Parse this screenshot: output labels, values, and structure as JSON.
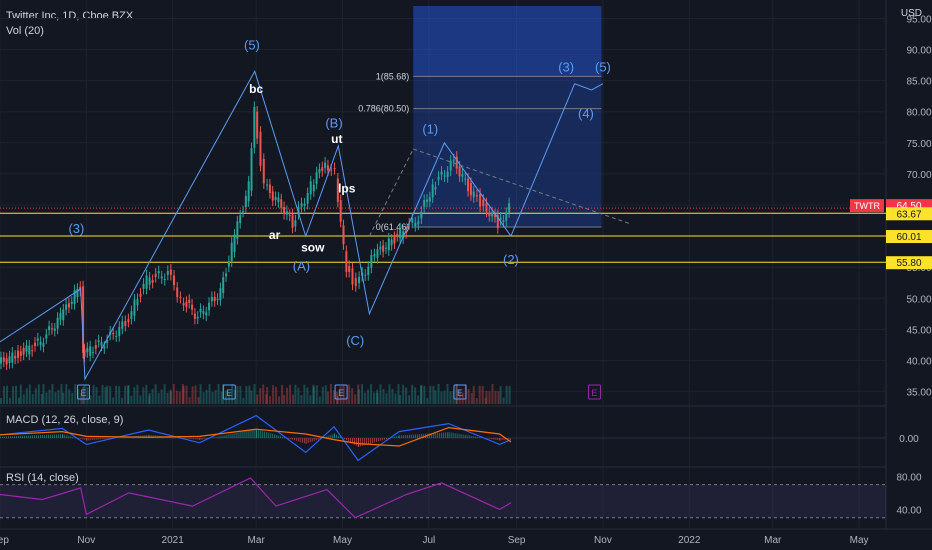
{
  "header": {
    "title": "Twitter Inc, 1D, Cboe BZX",
    "vol": "Vol (20)",
    "currency": "USD"
  },
  "indicators": {
    "macd_label": "MACD (12, 26, close, 9)",
    "rsi_label": "RSI (14, close)"
  },
  "chart_data": {
    "type": "candlestick",
    "title": "Twitter Inc, 1D, Cboe BZX",
    "ticker": "TWTR",
    "last_price": "64.50",
    "price_axis": {
      "ylim": [
        33,
        97
      ],
      "ticks": [
        "35.00",
        "40.00",
        "45.00",
        "50.00",
        "55.00",
        "60.00",
        "65.00",
        "70.00",
        "75.00",
        "80.00",
        "85.00",
        "90.00",
        "95.00"
      ]
    },
    "time_axis": {
      "range_start": "2020-09-01",
      "range_end": "2022-05-20",
      "ticks": [
        {
          "label": "Sep",
          "date": "2020-09-01"
        },
        {
          "label": "Nov",
          "date": "2020-11-01"
        },
        {
          "label": "2021",
          "date": "2021-01-01"
        },
        {
          "label": "Mar",
          "date": "2021-03-01"
        },
        {
          "label": "May",
          "date": "2021-05-01"
        },
        {
          "label": "Jul",
          "date": "2021-07-01"
        },
        {
          "label": "Sep",
          "date": "2021-09-01"
        },
        {
          "label": "Nov",
          "date": "2021-11-01"
        },
        {
          "label": "2022",
          "date": "2022-01-01"
        },
        {
          "label": "Mar",
          "date": "2022-03-01"
        },
        {
          "label": "May",
          "date": "2022-05-01"
        }
      ]
    },
    "price_path": [
      [
        "2020-09-01",
        39.5
      ],
      [
        "2020-09-15",
        41
      ],
      [
        "2020-10-01",
        43
      ],
      [
        "2020-10-15",
        47
      ],
      [
        "2020-10-29",
        52
      ],
      [
        "2020-10-30",
        41
      ],
      [
        "2020-11-15",
        43
      ],
      [
        "2020-11-30",
        46
      ],
      [
        "2020-12-15",
        53
      ],
      [
        "2020-12-30",
        54
      ],
      [
        "2021-01-08",
        50
      ],
      [
        "2021-01-20",
        47
      ],
      [
        "2021-02-05",
        51
      ],
      [
        "2021-02-15",
        60
      ],
      [
        "2021-02-25",
        68
      ],
      [
        "2021-03-01",
        80
      ],
      [
        "2021-03-08",
        68
      ],
      [
        "2021-03-20",
        65
      ],
      [
        "2021-03-28",
        62
      ],
      [
        "2021-04-10",
        68
      ],
      [
        "2021-04-20",
        72
      ],
      [
        "2021-04-27",
        70
      ],
      [
        "2021-04-29",
        65
      ],
      [
        "2021-05-05",
        55
      ],
      [
        "2021-05-12",
        52
      ],
      [
        "2021-05-25",
        57
      ],
      [
        "2021-06-10",
        60
      ],
      [
        "2021-06-25",
        63
      ],
      [
        "2021-07-05",
        68
      ],
      [
        "2021-07-20",
        72
      ],
      [
        "2021-08-01",
        67
      ],
      [
        "2021-08-10",
        65
      ],
      [
        "2021-08-20",
        62
      ],
      [
        "2021-08-28",
        64.5
      ]
    ],
    "horizontal_levels": [
      {
        "label": "64.50",
        "price": 64.5,
        "color": "#f23645"
      },
      {
        "label": "63.67",
        "price": 63.67,
        "color": "#fbe32b"
      },
      {
        "label": "60.01",
        "price": 60.01,
        "color": "#fbe32b"
      },
      {
        "label": "55.80",
        "price": 55.8,
        "color": "#fbe32b"
      }
    ],
    "fib_levels": [
      {
        "label": "1(85.68)",
        "price": 85.68
      },
      {
        "label": "0.786(80.50)",
        "price": 80.5
      },
      {
        "label": "0(61.46)",
        "price": 61.46
      }
    ],
    "wave_labels": [
      {
        "text": "(3)",
        "date": "2020-10-25",
        "price": 60.5
      },
      {
        "text": "(5)",
        "date": "2021-02-26",
        "price": 90
      },
      {
        "text": "bc",
        "date": "2021-03-01",
        "price": 83
      },
      {
        "text": "(B)",
        "date": "2021-04-25",
        "price": 77.5
      },
      {
        "text": "ut",
        "date": "2021-04-27",
        "price": 75
      },
      {
        "text": "lps",
        "date": "2021-05-04",
        "price": 67
      },
      {
        "text": "ar",
        "date": "2021-03-14",
        "price": 59.5
      },
      {
        "text": "sow",
        "date": "2021-04-10",
        "price": 57.5
      },
      {
        "text": "(A)",
        "date": "2021-04-02",
        "price": 54.5
      },
      {
        "text": "(C)",
        "date": "2021-05-10",
        "price": 42.5
      },
      {
        "text": "(1)",
        "date": "2021-07-02",
        "price": 76.5
      },
      {
        "text": "(2)",
        "date": "2021-08-28",
        "price": 55.5
      },
      {
        "text": "(3)",
        "date": "2021-10-06",
        "price": 86.5
      },
      {
        "text": "(4)",
        "date": "2021-10-20",
        "price": 79
      },
      {
        "text": "(5)",
        "date": "2021-11-01",
        "price": 86.5
      }
    ],
    "wave_path": [
      [
        "2020-09-01",
        43
      ],
      [
        "2020-10-28",
        51.5
      ],
      [
        "2020-10-31",
        37
      ],
      [
        "2021-02-28",
        86.5
      ],
      [
        "2021-04-05",
        60
      ],
      [
        "2021-04-28",
        74.5
      ],
      [
        "2021-05-20",
        47.5
      ],
      [
        "2021-07-12",
        75
      ],
      [
        "2021-08-28",
        60
      ],
      [
        "2021-10-12",
        84.5
      ],
      [
        "2021-10-24",
        83.5
      ],
      [
        "2021-11-01",
        84.5
      ]
    ],
    "target_box": {
      "start": "2021-06-20",
      "end": "2021-10-31",
      "top": 97,
      "bottom": 61.46
    },
    "earnings_markers": [
      "2020-10-30",
      "2021-02-10",
      "2021-04-30",
      "2021-07-23",
      "2021-10-26"
    ],
    "macd": {
      "ticks": [
        "0.00"
      ],
      "range": [
        -3.5,
        3.5
      ],
      "path": [
        [
          "2020-09-01",
          0.4
        ],
        [
          "2020-10-15",
          1.2
        ],
        [
          "2020-11-01",
          -0.8
        ],
        [
          "2020-12-15",
          1.0
        ],
        [
          "2021-01-20",
          -0.6
        ],
        [
          "2021-03-01",
          2.8
        ],
        [
          "2021-04-05",
          -1.8
        ],
        [
          "2021-04-25",
          1.4
        ],
        [
          "2021-05-12",
          -2.8
        ],
        [
          "2021-06-10",
          0.8
        ],
        [
          "2021-07-15",
          1.8
        ],
        [
          "2021-08-20",
          -0.8
        ],
        [
          "2021-08-28",
          -0.2
        ]
      ]
    },
    "rsi": {
      "ticks": [
        "80.00",
        "40.00"
      ],
      "range": [
        20,
        90
      ],
      "bands": [
        70,
        30
      ],
      "path": [
        [
          "2020-09-01",
          58
        ],
        [
          "2020-10-01",
          52
        ],
        [
          "2020-10-28",
          66
        ],
        [
          "2020-11-01",
          34
        ],
        [
          "2020-12-01",
          60
        ],
        [
          "2021-01-15",
          44
        ],
        [
          "2021-02-25",
          78
        ],
        [
          "2021-03-15",
          44
        ],
        [
          "2021-04-20",
          64
        ],
        [
          "2021-05-10",
          30
        ],
        [
          "2021-06-15",
          58
        ],
        [
          "2021-07-10",
          72
        ],
        [
          "2021-08-20",
          40
        ],
        [
          "2021-08-28",
          48
        ]
      ]
    }
  }
}
